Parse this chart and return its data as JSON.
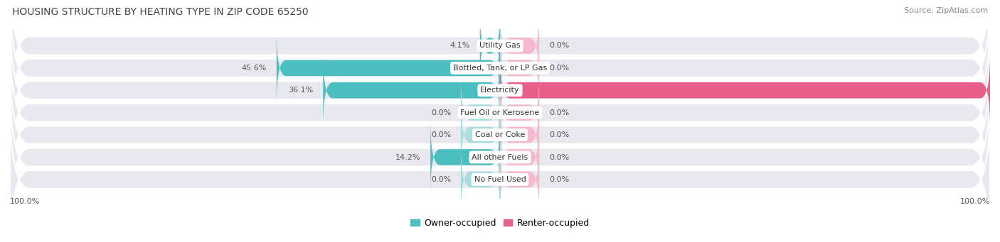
{
  "title": "HOUSING STRUCTURE BY HEATING TYPE IN ZIP CODE 65250",
  "source": "Source: ZipAtlas.com",
  "categories": [
    "Utility Gas",
    "Bottled, Tank, or LP Gas",
    "Electricity",
    "Fuel Oil or Kerosene",
    "Coal or Coke",
    "All other Fuels",
    "No Fuel Used"
  ],
  "owner_values": [
    4.1,
    45.6,
    36.1,
    0.0,
    0.0,
    14.2,
    0.0
  ],
  "renter_values": [
    0.0,
    0.0,
    100.0,
    0.0,
    0.0,
    0.0,
    0.0
  ],
  "owner_color": "#4bbfbf",
  "owner_color_light": "#a8dede",
  "renter_color": "#e8608a",
  "renter_color_light": "#f5b8cc",
  "owner_label": "Owner-occupied",
  "renter_label": "Renter-occupied",
  "bg_color": "#ffffff",
  "row_bg_color": "#e8e8ee",
  "val_label_color": "#555555",
  "cat_label_color": "#333333",
  "title_color": "#444444",
  "source_color": "#888888",
  "title_fontsize": 10,
  "source_fontsize": 8,
  "val_label_fontsize": 8,
  "cat_label_fontsize": 8,
  "legend_fontsize": 9,
  "axis_tick_fontsize": 8,
  "zero_bar_width": 8.0,
  "min_bar_width": 8.0
}
